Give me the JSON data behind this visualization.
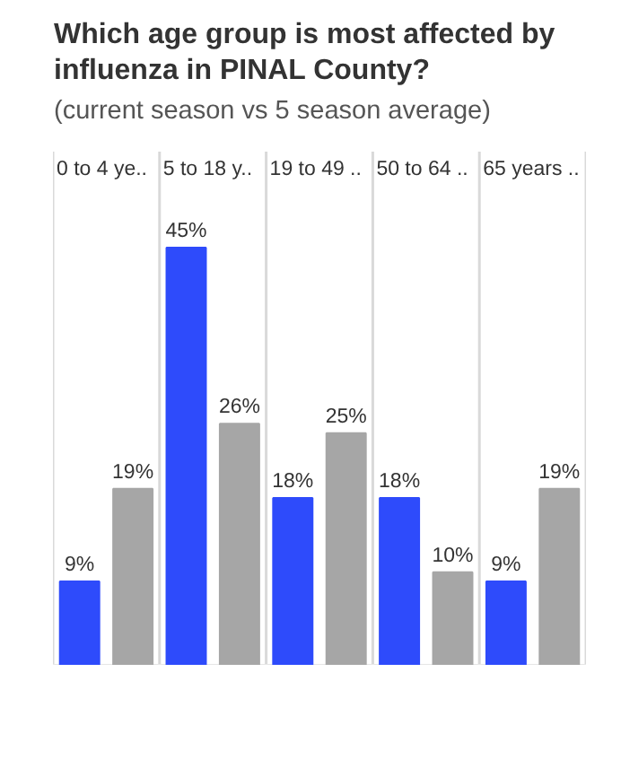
{
  "chart_data": {
    "type": "bar",
    "title": "Which age group is most affected by influenza in PINAL County?",
    "subtitle": "(current season vs 5 season average)",
    "categories": [
      "0 to 4 ye..",
      "5 to 18 y..",
      "19 to 49 ..",
      "50 to 64 ..",
      "65 years .."
    ],
    "series": [
      {
        "color": "#2e4bfb",
        "values": [
          9,
          45,
          18,
          18,
          9
        ],
        "value_labels": [
          "9%",
          "45%",
          "18%",
          "18%",
          "9%"
        ]
      },
      {
        "color": "#a6a6a6",
        "values": [
          19,
          26,
          25,
          10,
          19
        ],
        "value_labels": [
          "19%",
          "26%",
          "25%",
          "10%",
          "19%"
        ]
      }
    ],
    "grid": false
  }
}
